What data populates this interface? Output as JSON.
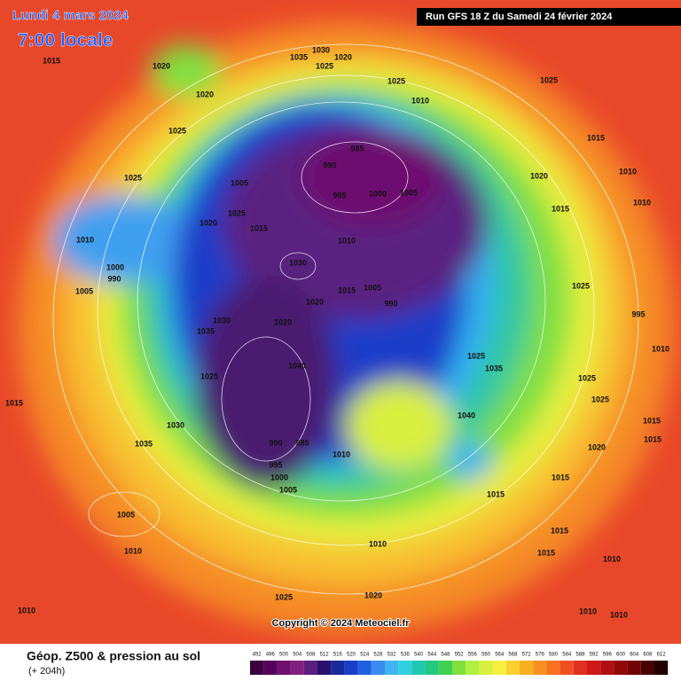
{
  "header": {
    "date": "Lundi 4 mars 2024",
    "time": "7:00 locale",
    "run": "Run GFS 18 Z du Samedi 24 février 2024"
  },
  "copyright": "Copyright © 2024 Meteociel.fr",
  "legend": {
    "title": "Géop. Z500 & pression au sol",
    "subtitle": "(+ 204h)"
  },
  "colorbar": {
    "ticks": [
      492,
      496,
      500,
      504,
      508,
      512,
      516,
      520,
      524,
      528,
      532,
      536,
      540,
      544,
      548,
      552,
      556,
      560,
      564,
      568,
      572,
      576,
      580,
      584,
      588,
      592,
      596,
      600,
      604,
      608,
      612
    ],
    "colors": [
      "#3a0040",
      "#55005a",
      "#6e1070",
      "#82207f",
      "#5a2080",
      "#2a1070",
      "#1a2a9a",
      "#1a3ec8",
      "#2060e0",
      "#3a8cf0",
      "#40b4f0",
      "#30d0e0",
      "#20c8b0",
      "#20c880",
      "#40d050",
      "#80e040",
      "#b0f040",
      "#d8f040",
      "#f8f040",
      "#f8d030",
      "#f8b020",
      "#f89020",
      "#f87020",
      "#f05020",
      "#e03020",
      "#d01818",
      "#b01010",
      "#900808",
      "#700404",
      "#480202",
      "#200000"
    ]
  },
  "map_labels": [
    "1015",
    "1020",
    "1030",
    "1035",
    "1025",
    "1020",
    "1020",
    "1025",
    "1025",
    "1010",
    "1025",
    "985",
    "990",
    "1015",
    "1010",
    "1020",
    "1025",
    "1005",
    "995",
    "1000",
    "1005",
    "1015",
    "1010",
    "1020",
    "1025",
    "1015",
    "1010",
    "1010",
    "1030",
    "1000",
    "990",
    "1005",
    "1015",
    "1005",
    "990",
    "1020",
    "1025",
    "995",
    "1030",
    "1020",
    "1035",
    "1025",
    "1040",
    "1025",
    "1035",
    "1040",
    "1025",
    "1025",
    "1010",
    "1015",
    "1030",
    "1035",
    "990",
    "985",
    "1010",
    "1020",
    "1015",
    "1015",
    "995",
    "1000",
    "1005",
    "1015",
    "1015",
    "1005",
    "1015",
    "1010",
    "1010",
    "1015",
    "1010",
    "1020",
    "1025",
    "1010",
    "1010",
    "1010"
  ]
}
